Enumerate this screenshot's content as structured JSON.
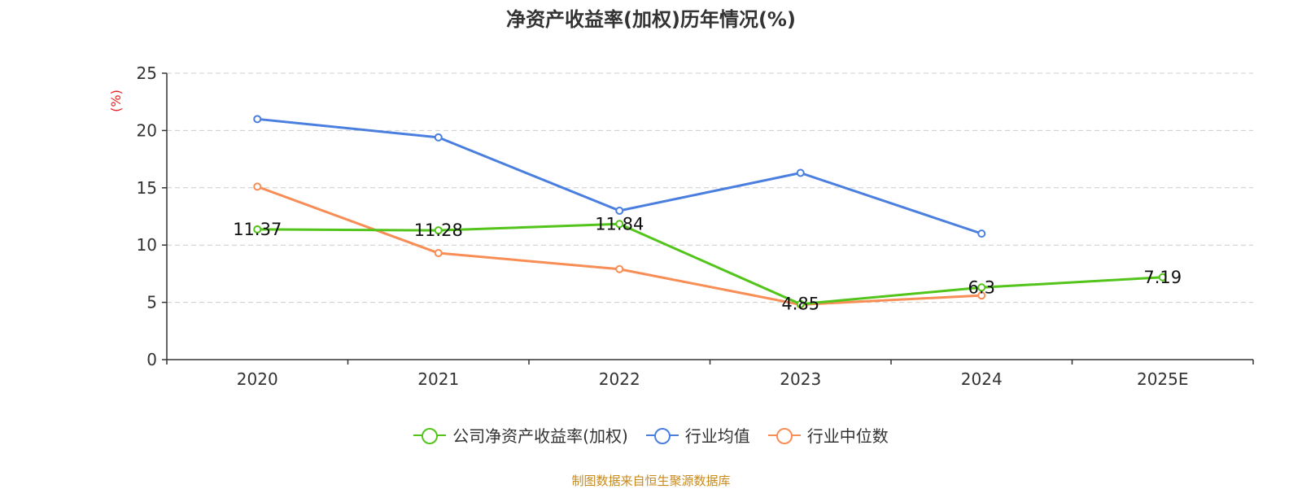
{
  "title": "净资产收益率(加权)历年情况(%)",
  "source": "制图数据来自恒生聚源数据库",
  "colors": {
    "company": "#52c41a",
    "industry_avg": "#4a7fe0",
    "industry_median": "#f88e55",
    "unit_label": "#e8231f"
  },
  "legend": [
    {
      "name": "公司净资产收益率(加权)",
      "icon": "circle-line-icon",
      "color": "#52c41a"
    },
    {
      "name": "行业均值",
      "icon": "circle-line-icon",
      "color": "#4a7fe0"
    },
    {
      "name": "行业中位数",
      "icon": "circle-line-icon",
      "color": "#f88e55"
    }
  ],
  "chart_data": {
    "type": "line",
    "title": "净资产收益率(加权)历年情况(%)",
    "xlabel": "",
    "ylabel": "(%)",
    "categories": [
      "2020",
      "2021",
      "2022",
      "2023",
      "2024",
      "2025E"
    ],
    "ylim": [
      0,
      25
    ],
    "yticks": [
      0,
      5,
      10,
      15,
      20,
      25
    ],
    "grid": true,
    "legend_position": "bottom-center",
    "series": [
      {
        "name": "公司净资产收益率(加权)",
        "values": [
          11.37,
          11.28,
          11.84,
          4.85,
          6.3,
          7.19
        ],
        "labels": [
          "11.37",
          "11.28",
          "11.84",
          "4.85",
          "6.3",
          "7.19"
        ],
        "color": "#52c41a"
      },
      {
        "name": "行业均值",
        "values": [
          21.0,
          19.4,
          13.0,
          16.3,
          11.0,
          null
        ],
        "color": "#4a7fe0"
      },
      {
        "name": "行业中位数",
        "values": [
          15.1,
          9.3,
          7.9,
          4.8,
          5.6,
          null
        ],
        "color": "#f88e55"
      }
    ]
  }
}
